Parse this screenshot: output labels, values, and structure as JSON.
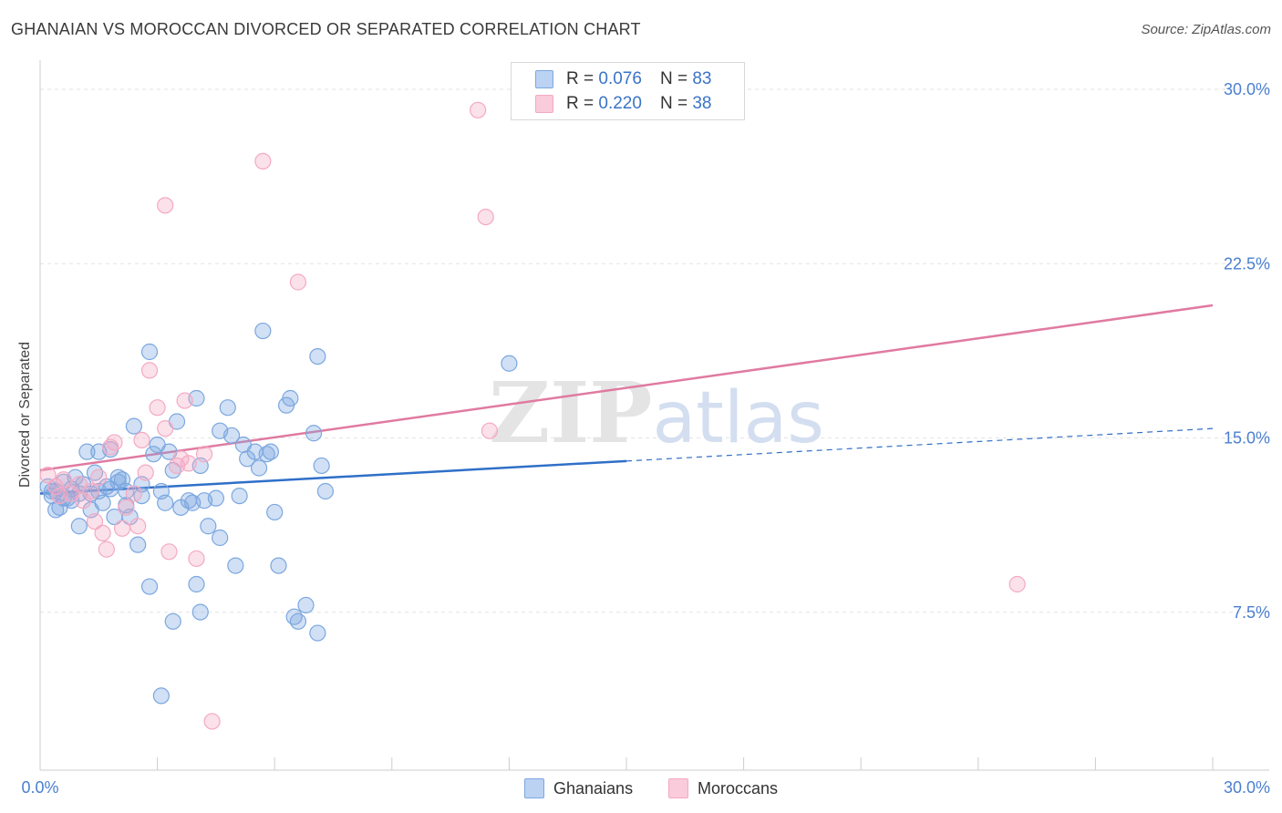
{
  "chart_data": {
    "type": "scatter",
    "title": "GHANAIAN VS MOROCCAN DIVORCED OR SEPARATED CORRELATION CHART",
    "source": "Source: ZipAtlas.com",
    "xlabel": "",
    "ylabel": "Divorced or Separated",
    "xlim": [
      0,
      30
    ],
    "ylim": [
      0,
      30
    ],
    "x_tick_labels": [
      "0.0%",
      "30.0%"
    ],
    "y_ticks": [
      7.5,
      15.0,
      22.5,
      30.0
    ],
    "y_tick_labels": [
      "7.5%",
      "15.0%",
      "22.5%",
      "30.0%"
    ],
    "grid": true,
    "watermark": "ZIPatlas",
    "legend": {
      "position": "top-center",
      "entries": [
        {
          "r_label": "R =",
          "r_value": "0.076",
          "n_label": "N =",
          "n_value": "83"
        },
        {
          "r_label": "R =",
          "r_value": "0.220",
          "n_label": "N =",
          "n_value": "38"
        }
      ]
    },
    "series": [
      {
        "name": "Ghanaians",
        "color": "#7ba7e0",
        "line_color": "#2f6fc8",
        "trend": {
          "x0": 0,
          "y0": 11.9,
          "x1": 15,
          "y1": 13.3,
          "dash_x1": 30,
          "dash_y1": 14.7
        },
        "points": [
          [
            0.2,
            12.2
          ],
          [
            0.3,
            11.8
          ],
          [
            0.4,
            12.0
          ],
          [
            0.5,
            11.3
          ],
          [
            0.6,
            12.4
          ],
          [
            0.7,
            11.7
          ],
          [
            0.8,
            12.1
          ],
          [
            0.9,
            12.6
          ],
          [
            1.0,
            11.9
          ],
          [
            1.1,
            12.3
          ],
          [
            1.2,
            13.7
          ],
          [
            1.3,
            11.2
          ],
          [
            1.4,
            12.8
          ],
          [
            1.5,
            13.7
          ],
          [
            1.6,
            11.5
          ],
          [
            1.7,
            12.2
          ],
          [
            1.8,
            13.8
          ],
          [
            1.9,
            10.9
          ],
          [
            2.0,
            12.4
          ],
          [
            2.1,
            12.5
          ],
          [
            2.2,
            11.4
          ],
          [
            2.3,
            10.9
          ],
          [
            2.4,
            14.8
          ],
          [
            2.5,
            9.7
          ],
          [
            2.6,
            12.3
          ],
          [
            2.2,
            12.0
          ],
          [
            2.0,
            12.6
          ],
          [
            1.0,
            10.5
          ],
          [
            0.4,
            11.2
          ],
          [
            1.5,
            12.0
          ],
          [
            2.8,
            18.0
          ],
          [
            3.0,
            14.0
          ],
          [
            3.1,
            12.0
          ],
          [
            3.2,
            11.5
          ],
          [
            3.3,
            13.7
          ],
          [
            3.4,
            12.9
          ],
          [
            2.9,
            13.6
          ],
          [
            2.8,
            7.9
          ],
          [
            3.4,
            6.4
          ],
          [
            3.6,
            11.3
          ],
          [
            3.8,
            11.6
          ],
          [
            4.0,
            16.0
          ],
          [
            3.5,
            15.0
          ],
          [
            4.1,
            13.1
          ],
          [
            4.2,
            11.6
          ],
          [
            4.5,
            11.7
          ],
          [
            4.3,
            10.5
          ],
          [
            4.8,
            15.6
          ],
          [
            4.6,
            14.6
          ],
          [
            4.9,
            14.4
          ],
          [
            5.1,
            11.8
          ],
          [
            5.0,
            8.8
          ],
          [
            5.2,
            14.0
          ],
          [
            5.3,
            13.4
          ],
          [
            5.5,
            13.7
          ],
          [
            5.6,
            13.0
          ],
          [
            5.8,
            13.6
          ],
          [
            5.9,
            13.7
          ],
          [
            5.7,
            18.9
          ],
          [
            6.0,
            11.1
          ],
          [
            6.1,
            8.8
          ],
          [
            6.3,
            15.7
          ],
          [
            6.4,
            16.0
          ],
          [
            6.5,
            6.6
          ],
          [
            6.6,
            6.4
          ],
          [
            7.0,
            14.5
          ],
          [
            7.1,
            17.8
          ],
          [
            7.3,
            12.0
          ],
          [
            7.2,
            13.1
          ],
          [
            6.8,
            7.1
          ],
          [
            7.1,
            5.9
          ],
          [
            3.1,
            3.2
          ],
          [
            4.0,
            8.0
          ],
          [
            4.1,
            6.8
          ],
          [
            4.6,
            10.0
          ],
          [
            3.9,
            11.5
          ],
          [
            0.3,
            12.0
          ],
          [
            0.8,
            11.6
          ],
          [
            1.3,
            11.9
          ],
          [
            2.6,
            11.8
          ],
          [
            12.0,
            17.5
          ],
          [
            1.8,
            12.1
          ],
          [
            0.6,
            11.7
          ]
        ]
      },
      {
        "name": "Moroccans",
        "color": "#f4a9c2",
        "line_color": "#e07aa0",
        "trend": {
          "x0": 0,
          "y0": 12.9,
          "x1": 30,
          "y1": 20.0
        },
        "points": [
          [
            0.2,
            12.7
          ],
          [
            0.4,
            12.2
          ],
          [
            0.5,
            11.8
          ],
          [
            0.6,
            12.5
          ],
          [
            0.8,
            11.9
          ],
          [
            1.0,
            12.3
          ],
          [
            1.1,
            11.6
          ],
          [
            1.3,
            12.0
          ],
          [
            1.4,
            10.7
          ],
          [
            1.5,
            12.6
          ],
          [
            1.6,
            10.2
          ],
          [
            1.7,
            9.5
          ],
          [
            1.8,
            13.9
          ],
          [
            1.9,
            14.1
          ],
          [
            2.1,
            10.4
          ],
          [
            2.2,
            11.3
          ],
          [
            2.4,
            11.9
          ],
          [
            2.6,
            14.2
          ],
          [
            2.5,
            10.5
          ],
          [
            2.7,
            12.8
          ],
          [
            2.8,
            17.2
          ],
          [
            3.0,
            15.6
          ],
          [
            3.2,
            14.7
          ],
          [
            3.3,
            9.4
          ],
          [
            3.5,
            13.1
          ],
          [
            3.6,
            13.4
          ],
          [
            3.7,
            15.9
          ],
          [
            3.8,
            13.2
          ],
          [
            4.0,
            9.1
          ],
          [
            4.2,
            13.6
          ],
          [
            4.4,
            2.1
          ],
          [
            3.2,
            24.3
          ],
          [
            5.7,
            26.2
          ],
          [
            6.6,
            21.0
          ],
          [
            11.2,
            28.4
          ],
          [
            11.4,
            23.8
          ],
          [
            11.5,
            14.6
          ],
          [
            25.0,
            8.0
          ]
        ]
      }
    ]
  }
}
